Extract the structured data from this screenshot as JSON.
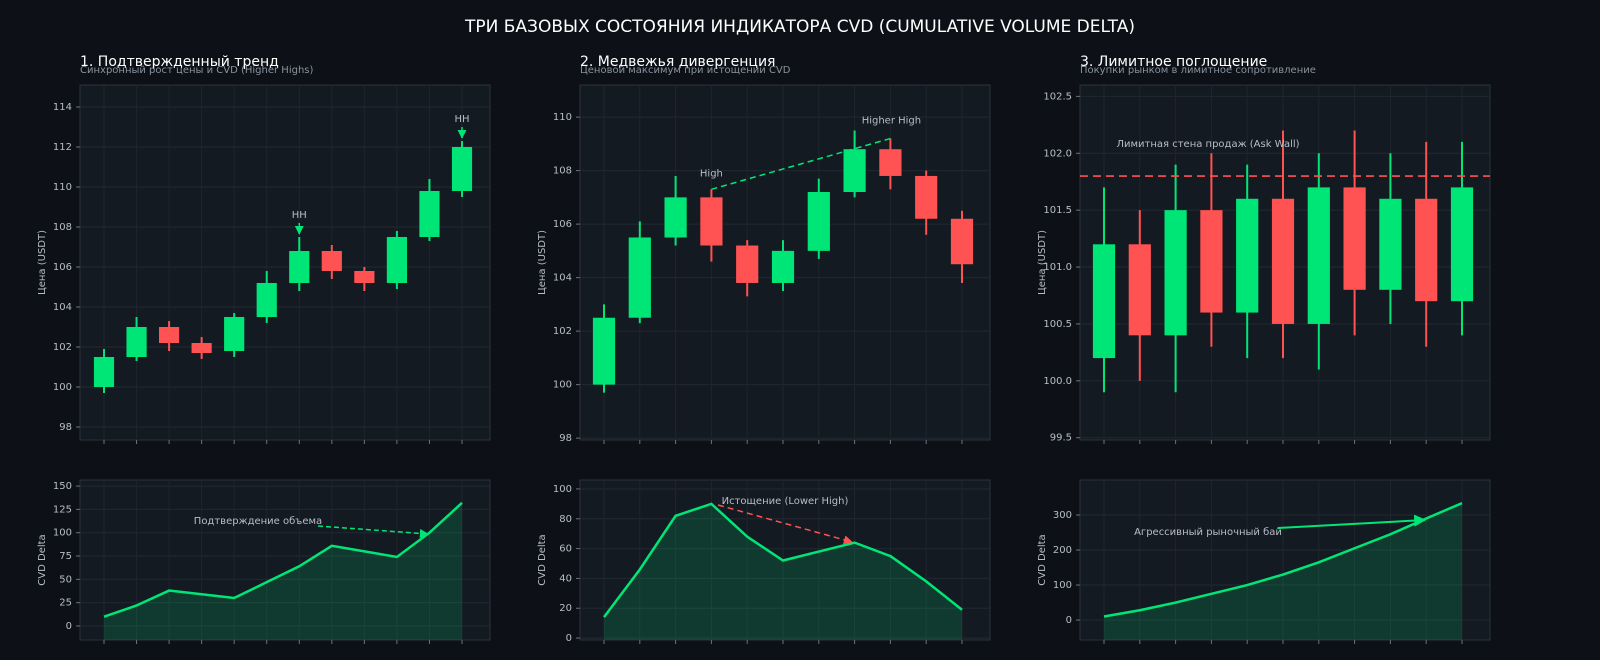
{
  "title": "ТРИ БАЗОВЫХ СОСТОЯНИЯ ИНДИКАТОРА CVD (CUMULATIVE VOLUME DELTA)",
  "chart_data": [
    {
      "type": "candlestick",
      "title": "1. Подтвержденный тренд",
      "subtitle": "Синхронный рост цены и CVD (Higher Highs)",
      "ylabel": "Цена (USDT)",
      "open": [
        100.0,
        101.5,
        103.0,
        102.2,
        101.8,
        103.5,
        105.2,
        106.8,
        105.8,
        105.2,
        107.5,
        109.8
      ],
      "high": [
        101.9,
        103.5,
        103.3,
        102.5,
        103.7,
        105.8,
        107.5,
        107.1,
        106.0,
        107.8,
        110.4,
        112.3
      ],
      "low": [
        99.7,
        101.3,
        101.8,
        101.4,
        101.5,
        103.2,
        104.8,
        105.4,
        104.8,
        104.9,
        107.3,
        109.5
      ],
      "close": [
        101.5,
        103.0,
        102.2,
        101.7,
        103.5,
        105.2,
        106.8,
        105.8,
        105.2,
        107.5,
        109.8,
        112.0
      ],
      "up_color": "#00e676",
      "down_color": "#ff5252",
      "ylim": [
        97.35,
        115.1
      ],
      "yticks": [
        98,
        100,
        102,
        104,
        106,
        108,
        110,
        112,
        114
      ],
      "grid": true,
      "annotations": [
        {
          "text": "HH"
        },
        {
          "text": "HH"
        }
      ]
    },
    {
      "type": "area",
      "ylabel": "CVD Delta",
      "values": [
        10,
        22,
        38,
        34,
        30,
        47,
        64,
        86,
        80,
        74,
        100,
        132
      ],
      "color": "#00e676",
      "ylim": [
        -15,
        156.5
      ],
      "yticks": [
        0,
        25,
        50,
        75,
        100,
        125,
        150
      ],
      "grid": true,
      "annotations": [
        {
          "text": "Подтверждение объема"
        }
      ]
    },
    {
      "type": "candlestick",
      "title": "2. Медвежья дивергенция",
      "subtitle": "Ценовой максимум при истощении CVD",
      "ylabel": "Цена (USDT)",
      "open": [
        100.0,
        102.5,
        105.5,
        107.0,
        105.2,
        103.8,
        105.0,
        107.2,
        108.8,
        107.8,
        106.2
      ],
      "high": [
        103.0,
        106.1,
        107.8,
        107.3,
        105.4,
        105.4,
        107.7,
        109.5,
        109.2,
        108.0,
        106.5
      ],
      "low": [
        99.7,
        102.3,
        105.2,
        104.6,
        103.3,
        103.5,
        104.7,
        107.0,
        107.3,
        105.6,
        103.8
      ],
      "close": [
        102.5,
        105.5,
        107.0,
        105.2,
        103.8,
        105.0,
        107.2,
        108.8,
        107.8,
        106.2,
        104.5
      ],
      "up_color": "#00e676",
      "down_color": "#ff5252",
      "ylim": [
        97.93,
        111.2
      ],
      "yticks": [
        98,
        100,
        102,
        104,
        106,
        108,
        110
      ],
      "grid": true,
      "annotations": [
        {
          "text": "High"
        },
        {
          "text": "Higher High"
        }
      ]
    },
    {
      "type": "area",
      "ylabel": "CVD Delta",
      "values": [
        14,
        46,
        82,
        90,
        68,
        52,
        58,
        64,
        55,
        38,
        19
      ],
      "color": "#00e676",
      "ylim": [
        -1.3,
        106
      ],
      "yticks": [
        0,
        20,
        40,
        60,
        80,
        100
      ],
      "grid": true,
      "annotations": [
        {
          "text": "Истощение (Lower High)"
        }
      ]
    },
    {
      "type": "candlestick",
      "title": "3. Лимитное поглощение",
      "subtitle": "Покупки рынком в лимитное сопротивление",
      "ylabel": "Цена (USDT)",
      "open": [
        100.2,
        101.2,
        100.4,
        101.5,
        100.6,
        101.6,
        100.5,
        101.7,
        100.8,
        101.6,
        100.7
      ],
      "high": [
        101.7,
        101.5,
        101.9,
        102.0,
        101.9,
        102.2,
        102.0,
        102.2,
        102.0,
        102.1,
        102.1
      ],
      "low": [
        99.9,
        100.0,
        99.9,
        100.3,
        100.2,
        100.2,
        100.1,
        100.4,
        100.5,
        100.3,
        100.4
      ],
      "close": [
        101.2,
        100.4,
        101.5,
        100.6,
        101.6,
        100.5,
        101.7,
        100.8,
        101.6,
        100.7,
        101.7
      ],
      "up_color": "#00e676",
      "down_color": "#ff5252",
      "ylim": [
        99.48,
        102.6
      ],
      "yticks": [
        99.5,
        {
          "value": 100,
          "label": "100.0"
        },
        100.5,
        {
          "value": 101,
          "label": "101.0"
        },
        101.5,
        {
          "value": 102,
          "label": "102.0"
        },
        102.5
      ],
      "grid": true,
      "hline": {
        "value": 101.8,
        "label": "Лимитная стена продаж (Ask Wall)",
        "color": "#ff5252"
      },
      "annotations": []
    },
    {
      "type": "area",
      "ylabel": "CVD Delta",
      "values": [
        10,
        28,
        50,
        75,
        100,
        130,
        165,
        205,
        245,
        290,
        334
      ],
      "color": "#00e676",
      "ylim": [
        -57,
        400
      ],
      "yticks": [
        0,
        100,
        200,
        300
      ],
      "grid": true,
      "annotations": [
        {
          "text": "Агрессивный рыночный бай"
        }
      ]
    }
  ]
}
